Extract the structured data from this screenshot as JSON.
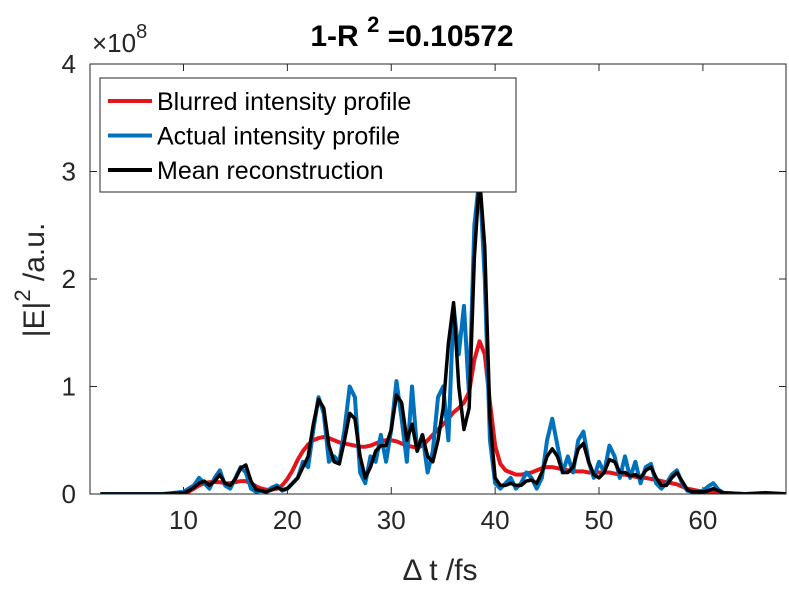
{
  "chart_data": {
    "type": "line",
    "title_parts": [
      "1-R ",
      "2",
      " =0.10572"
    ],
    "ylabel_parts": [
      "|E|",
      "2",
      " /a.u."
    ],
    "xlabel": "Δ t /fs",
    "y_exponent_parts": [
      "×10",
      "8"
    ],
    "xlim": [
      1,
      68
    ],
    "ylim": [
      0,
      4
    ],
    "xticks": [
      10,
      20,
      30,
      40,
      50,
      60
    ],
    "yticks": [
      0,
      1,
      2,
      3,
      4
    ],
    "legend": "northwest",
    "box": true,
    "x": [
      2,
      4,
      6,
      8,
      10,
      10.5,
      11,
      11.5,
      12,
      12.5,
      13,
      13.5,
      14,
      14.5,
      15,
      15.5,
      16,
      16.5,
      17,
      17.5,
      18,
      18.5,
      19,
      19.5,
      20,
      20.5,
      21,
      21.5,
      22,
      22.5,
      23,
      23.5,
      24,
      24.5,
      25,
      25.5,
      26,
      26.5,
      27,
      27.5,
      28,
      28.5,
      29,
      29.5,
      30,
      30.5,
      31,
      31.5,
      32,
      32.5,
      33,
      33.5,
      34,
      34.5,
      35,
      35.5,
      36,
      36.5,
      37,
      37.5,
      38,
      38.5,
      39,
      39.5,
      40,
      40.5,
      41,
      41.5,
      42,
      42.5,
      43,
      43.5,
      44,
      44.5,
      45,
      45.5,
      46,
      46.5,
      47,
      47.5,
      48,
      48.5,
      49,
      49.5,
      50,
      50.5,
      51,
      51.5,
      52,
      52.5,
      53,
      53.5,
      54,
      54.5,
      55,
      55.5,
      56,
      56.5,
      57,
      57.5,
      58,
      58.5,
      59,
      59.5,
      60,
      60.5,
      61,
      61.5,
      62,
      64,
      66,
      68
    ],
    "series": [
      {
        "name": "Blurred intensity profile",
        "color": "#e3151b",
        "values": [
          0,
          0,
          0,
          0,
          0.01,
          0.02,
          0.05,
          0.08,
          0.1,
          0.11,
          0.11,
          0.11,
          0.1,
          0.1,
          0.11,
          0.12,
          0.12,
          0.1,
          0.07,
          0.05,
          0.04,
          0.04,
          0.05,
          0.08,
          0.14,
          0.22,
          0.32,
          0.4,
          0.46,
          0.5,
          0.52,
          0.53,
          0.52,
          0.5,
          0.48,
          0.47,
          0.46,
          0.45,
          0.44,
          0.44,
          0.45,
          0.47,
          0.49,
          0.5,
          0.5,
          0.49,
          0.47,
          0.45,
          0.44,
          0.43,
          0.45,
          0.5,
          0.55,
          0.6,
          0.65,
          0.7,
          0.76,
          0.8,
          0.85,
          0.95,
          1.25,
          1.42,
          1.3,
          0.85,
          0.45,
          0.28,
          0.22,
          0.2,
          0.18,
          0.18,
          0.19,
          0.2,
          0.22,
          0.24,
          0.25,
          0.25,
          0.24,
          0.23,
          0.22,
          0.21,
          0.21,
          0.21,
          0.2,
          0.2,
          0.2,
          0.2,
          0.2,
          0.19,
          0.18,
          0.18,
          0.17,
          0.16,
          0.15,
          0.15,
          0.14,
          0.13,
          0.12,
          0.11,
          0.1,
          0.09,
          0.07,
          0.05,
          0.04,
          0.03,
          0.02,
          0.02,
          0.02,
          0.01,
          0.01,
          0,
          0,
          0
        ]
      },
      {
        "name": "Actual intensity profile",
        "color": "#0072bd",
        "values": [
          0,
          0,
          0,
          0,
          0.02,
          0.05,
          0.08,
          0.15,
          0.1,
          0.05,
          0.15,
          0.22,
          0.08,
          0.05,
          0.15,
          0.25,
          0.2,
          0.05,
          0.02,
          0.03,
          0.02,
          0.06,
          0.08,
          0.03,
          0.05,
          0.1,
          0.15,
          0.3,
          0.25,
          0.6,
          0.9,
          0.75,
          0.3,
          0.35,
          0.3,
          0.6,
          1.0,
          0.9,
          0.2,
          0.1,
          0.35,
          0.3,
          0.55,
          0.3,
          0.6,
          1.05,
          0.7,
          0.3,
          1.0,
          0.4,
          0.55,
          0.2,
          0.4,
          0.9,
          1.0,
          0.5,
          1.75,
          1.3,
          1.75,
          0.9,
          2.5,
          2.95,
          2.0,
          0.5,
          0.1,
          0.05,
          0.1,
          0.15,
          0.05,
          0.1,
          0.2,
          0.15,
          0.05,
          0.15,
          0.5,
          0.7,
          0.45,
          0.2,
          0.35,
          0.2,
          0.5,
          0.58,
          0.3,
          0.15,
          0.3,
          0.2,
          0.45,
          0.35,
          0.15,
          0.35,
          0.15,
          0.3,
          0.1,
          0.25,
          0.28,
          0.1,
          0.05,
          0.1,
          0.18,
          0.22,
          0.1,
          0.03,
          0.02,
          0.02,
          0.03,
          0.07,
          0.1,
          0.04,
          0.01,
          0,
          0.01,
          0
        ]
      },
      {
        "name": "Mean reconstruction",
        "color": "#000000",
        "values": [
          0,
          0,
          0,
          0,
          0.01,
          0.03,
          0.06,
          0.1,
          0.12,
          0.08,
          0.12,
          0.18,
          0.1,
          0.08,
          0.14,
          0.24,
          0.27,
          0.12,
          0.04,
          0.03,
          0.02,
          0.04,
          0.06,
          0.04,
          0.05,
          0.1,
          0.15,
          0.25,
          0.35,
          0.65,
          0.88,
          0.8,
          0.45,
          0.3,
          0.28,
          0.5,
          0.75,
          0.7,
          0.35,
          0.15,
          0.25,
          0.4,
          0.45,
          0.45,
          0.6,
          0.92,
          0.85,
          0.5,
          0.65,
          0.4,
          0.55,
          0.35,
          0.3,
          0.5,
          0.8,
          1.4,
          1.78,
          1.0,
          0.6,
          0.8,
          2.2,
          2.95,
          2.3,
          0.7,
          0.15,
          0.08,
          0.08,
          0.1,
          0.08,
          0.08,
          0.12,
          0.13,
          0.1,
          0.2,
          0.35,
          0.42,
          0.35,
          0.2,
          0.2,
          0.25,
          0.42,
          0.47,
          0.3,
          0.18,
          0.15,
          0.2,
          0.32,
          0.3,
          0.2,
          0.2,
          0.17,
          0.18,
          0.15,
          0.22,
          0.25,
          0.15,
          0.08,
          0.08,
          0.15,
          0.2,
          0.12,
          0.04,
          0.02,
          0.02,
          0.02,
          0.03,
          0.05,
          0.03,
          0.01,
          0,
          0.01,
          0
        ]
      }
    ]
  }
}
